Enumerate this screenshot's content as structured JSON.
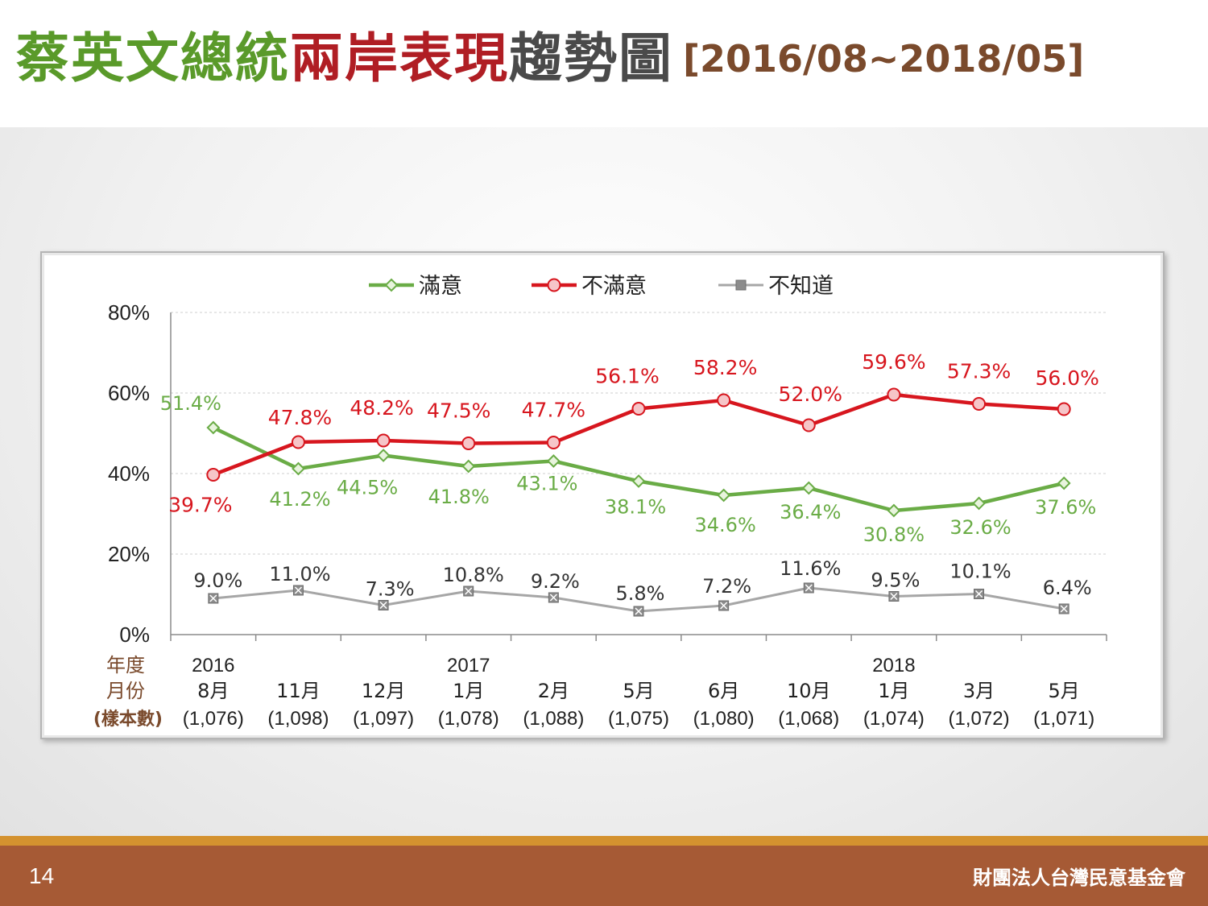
{
  "title": {
    "part1": "蔡英文總統",
    "part2": "兩岸表現",
    "part3": "趨勢圖",
    "range": "[2016/08~2018/05]"
  },
  "footer": {
    "page_number": "14",
    "organization": "財團法人台灣民意基金會"
  },
  "colors": {
    "satisfied": "#6aac46",
    "dissatisfied": "#d7161e",
    "unknown": "#a6a6a6",
    "row_label": "#7a4a2c",
    "footer_bg": "#a65a35",
    "footer_stripe": "#d4922f"
  },
  "chart_data": {
    "type": "line",
    "ylim": [
      0,
      80
    ],
    "yticks": [
      "0%",
      "20%",
      "40%",
      "60%",
      "80%"
    ],
    "ytick_values": [
      0,
      20,
      40,
      60,
      80
    ],
    "grid": true,
    "legend_position": "top-center",
    "row_labels": [
      "年度",
      "月份",
      "(樣本數)"
    ],
    "years": [
      "2016",
      "",
      "",
      "2017",
      "",
      "",
      "",
      "",
      "2018",
      "",
      ""
    ],
    "categories": [
      "8月",
      "11月",
      "12月",
      "1月",
      "2月",
      "5月",
      "6月",
      "10月",
      "1月",
      "3月",
      "5月"
    ],
    "sample_sizes": [
      "(1,076)",
      "(1,098)",
      "(1,097)",
      "(1,078)",
      "(1,088)",
      "(1,075)",
      "(1,080)",
      "(1,068)",
      "(1,074)",
      "(1,072)",
      "(1,071)"
    ],
    "series": [
      {
        "name": "滿意",
        "color": "#6aac46",
        "marker": "diamond",
        "values": [
          51.4,
          41.2,
          44.5,
          41.8,
          43.1,
          38.1,
          34.6,
          36.4,
          30.8,
          32.6,
          37.6
        ],
        "labels": [
          "51.4%",
          "41.2%",
          "44.5%",
          "41.8%",
          "43.1%",
          "38.1%",
          "34.6%",
          "36.4%",
          "30.8%",
          "32.6%",
          "37.6%"
        ]
      },
      {
        "name": "不滿意",
        "color": "#d7161e",
        "marker": "circle",
        "values": [
          39.7,
          47.8,
          48.2,
          47.5,
          47.7,
          56.1,
          58.2,
          52.0,
          59.6,
          57.3,
          56.0
        ],
        "labels": [
          "39.7%",
          "47.8%",
          "48.2%",
          "47.5%",
          "47.7%",
          "56.1%",
          "58.2%",
          "52.0%",
          "59.6%",
          "57.3%",
          "56.0%"
        ]
      },
      {
        "name": "不知道",
        "color": "#a6a6a6",
        "marker": "x-square",
        "values": [
          9.0,
          11.0,
          7.3,
          10.8,
          9.2,
          5.8,
          7.2,
          11.6,
          9.5,
          10.1,
          6.4
        ],
        "labels": [
          "9.0%",
          "11.0%",
          "7.3%",
          "10.8%",
          "9.2%",
          "5.8%",
          "7.2%",
          "11.6%",
          "9.5%",
          "10.1%",
          "6.4%"
        ]
      }
    ]
  }
}
